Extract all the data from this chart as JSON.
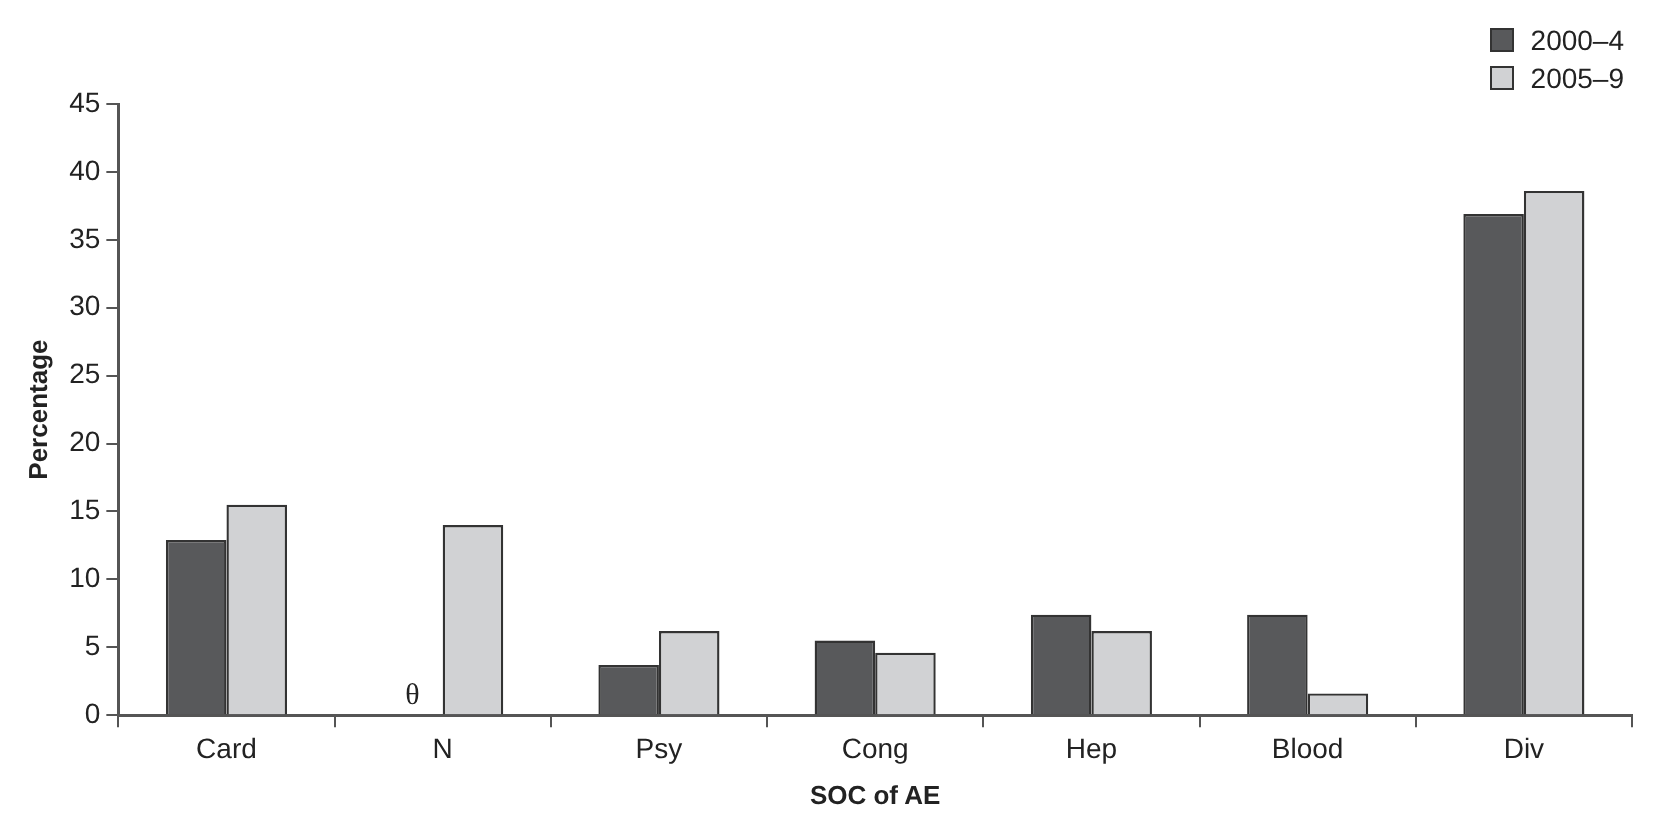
{
  "chart_data": {
    "type": "bar",
    "xlabel": "SOC of AE",
    "ylabel": "Percentage",
    "categories": [
      "Card",
      "N",
      "Psy",
      "Cong",
      "Hep",
      "Blood",
      "Div"
    ],
    "series": [
      {
        "name": "2000–4",
        "color": "#58595b",
        "values": [
          12.9,
          0,
          3.7,
          5.5,
          7.4,
          7.4,
          36.9
        ]
      },
      {
        "name": "2005–9",
        "color": "#d1d2d4",
        "values": [
          15.5,
          14,
          6.2,
          4.6,
          6.2,
          1.6,
          38.6
        ]
      }
    ],
    "ylim": [
      0,
      45
    ],
    "yticks": [
      0,
      5,
      10,
      15,
      20,
      25,
      30,
      35,
      40,
      45
    ],
    "grid": false,
    "legend": "top right",
    "annotations": [
      {
        "text": "θ",
        "x": "N",
        "y": 0
      }
    ]
  }
}
